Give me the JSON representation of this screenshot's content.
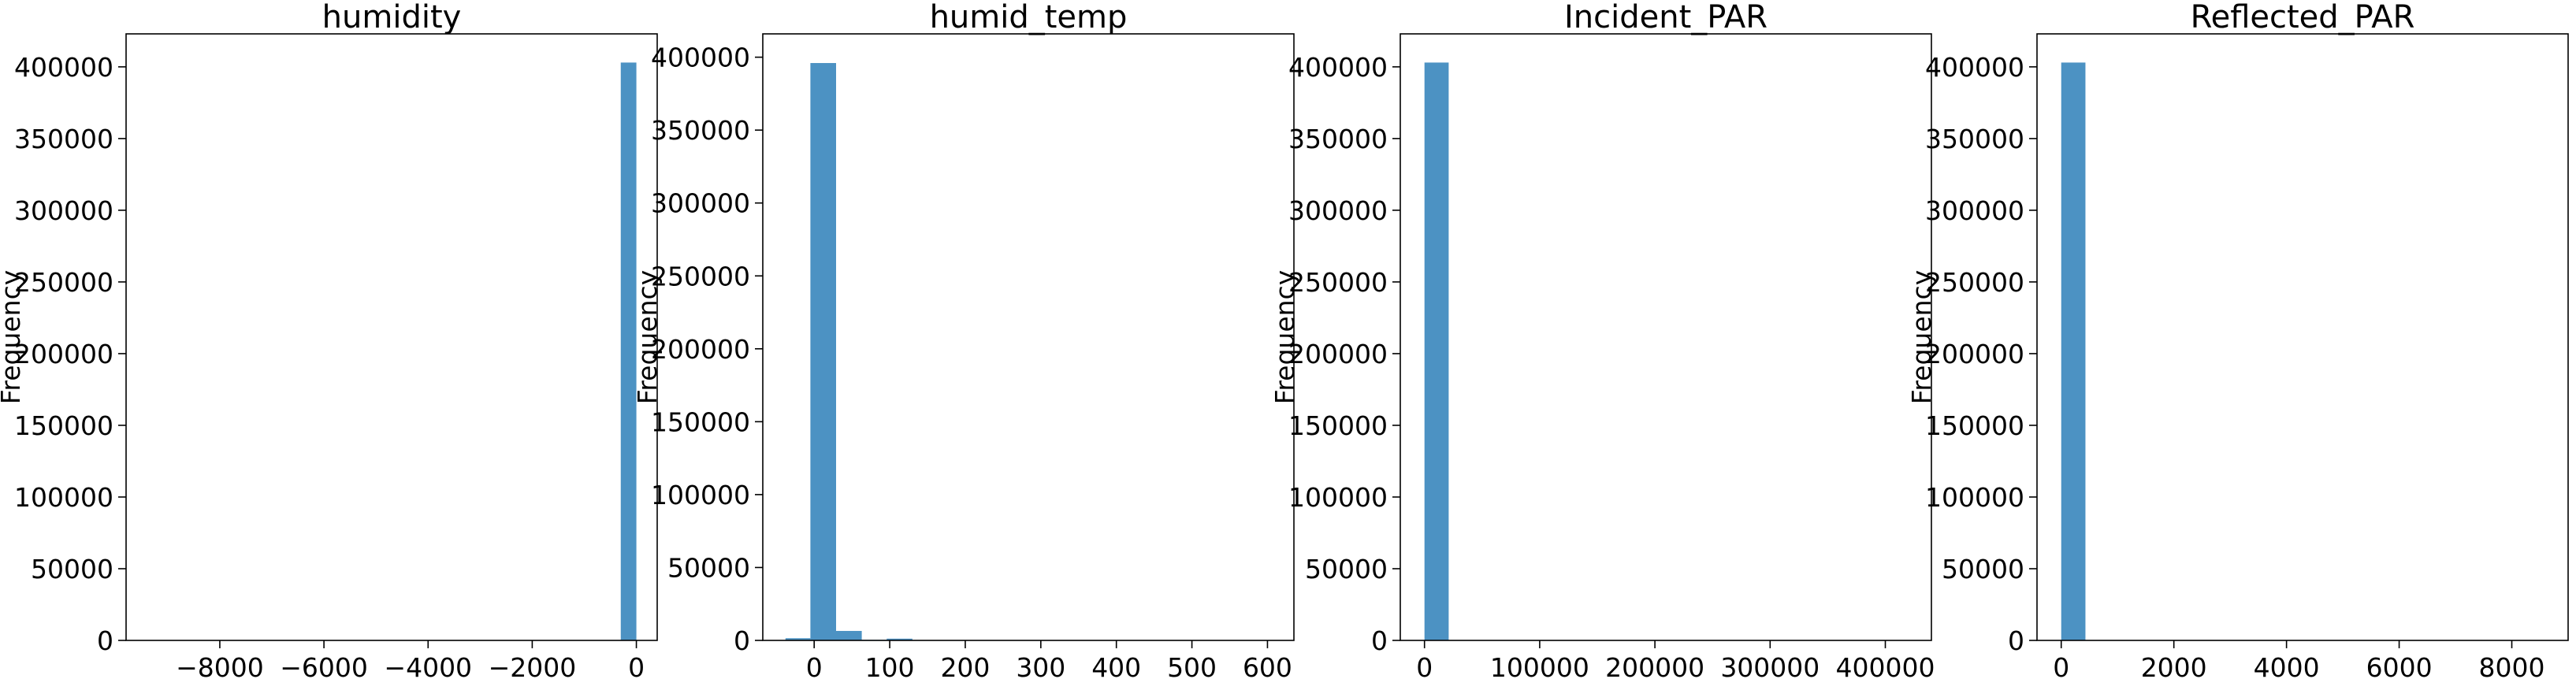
{
  "figure": {
    "background": "#ffffff",
    "bar_color": "#1f77b4",
    "bar_opacity": 0.8
  },
  "chart_data": [
    {
      "type": "bar",
      "title": "humidity",
      "xlabel": "",
      "ylabel": "Frequency",
      "xlim": [
        -9800,
        400
      ],
      "ylim": [
        0,
        423000
      ],
      "xticks": [
        -8000,
        -6000,
        -4000,
        -2000,
        0
      ],
      "xtick_labels": [
        "−8000",
        "−6000",
        "−4000",
        "−2000",
        "0"
      ],
      "yticks": [
        0,
        50000,
        100000,
        150000,
        200000,
        250000,
        300000,
        350000,
        400000
      ],
      "ytick_labels": [
        "0",
        "50000",
        "100000",
        "150000",
        "200000",
        "250000",
        "300000",
        "350000",
        "400000"
      ],
      "bins": [
        {
          "x0": -300,
          "x1": 0,
          "count": 403000
        }
      ]
    },
    {
      "type": "bar",
      "title": "humid_temp",
      "xlabel": "",
      "ylabel": "Frequency",
      "xlim": [
        -68,
        635
      ],
      "ylim": [
        0,
        416000
      ],
      "xticks": [
        0,
        100,
        200,
        300,
        400,
        500,
        600
      ],
      "xtick_labels": [
        "0",
        "100",
        "200",
        "300",
        "400",
        "500",
        "600"
      ],
      "yticks": [
        0,
        50000,
        100000,
        150000,
        200000,
        250000,
        300000,
        350000,
        400000
      ],
      "ytick_labels": [
        "0",
        "50000",
        "100000",
        "150000",
        "200000",
        "250000",
        "300000",
        "350000",
        "400000"
      ],
      "bins": [
        {
          "x0": -38,
          "x1": -5,
          "count": 1500
        },
        {
          "x0": -5,
          "x1": 29,
          "count": 396000
        },
        {
          "x0": 29,
          "x1": 63,
          "count": 6500
        },
        {
          "x0": 63,
          "x1": 96,
          "count": 400
        },
        {
          "x0": 96,
          "x1": 130,
          "count": 1200
        },
        {
          "x0": 130,
          "x1": 164,
          "count": 200
        }
      ]
    },
    {
      "type": "bar",
      "title": "Incident_PAR",
      "xlabel": "",
      "ylabel": "Frequency",
      "xlim": [
        -21000,
        440000
      ],
      "ylim": [
        0,
        423000
      ],
      "xticks": [
        0,
        100000,
        200000,
        300000,
        400000
      ],
      "xtick_labels": [
        "0",
        "100000",
        "200000",
        "300000",
        "400000"
      ],
      "yticks": [
        0,
        50000,
        100000,
        150000,
        200000,
        250000,
        300000,
        350000,
        400000
      ],
      "ytick_labels": [
        "0",
        "50000",
        "100000",
        "150000",
        "200000",
        "250000",
        "300000",
        "350000",
        "400000"
      ],
      "bins": [
        {
          "x0": 0,
          "x1": 21000,
          "count": 403000
        }
      ]
    },
    {
      "type": "bar",
      "title": "Reflected_PAR",
      "xlabel": "",
      "ylabel": "Frequency",
      "xlim": [
        -430,
        9000
      ],
      "ylim": [
        0,
        423000
      ],
      "xticks": [
        0,
        2000,
        4000,
        6000,
        8000
      ],
      "xtick_labels": [
        "0",
        "2000",
        "4000",
        "6000",
        "8000"
      ],
      "yticks": [
        0,
        50000,
        100000,
        150000,
        200000,
        250000,
        300000,
        350000,
        400000
      ],
      "ytick_labels": [
        "0",
        "50000",
        "100000",
        "150000",
        "200000",
        "250000",
        "300000",
        "350000",
        "400000"
      ],
      "bins": [
        {
          "x0": 0,
          "x1": 430,
          "count": 403000
        }
      ]
    }
  ]
}
